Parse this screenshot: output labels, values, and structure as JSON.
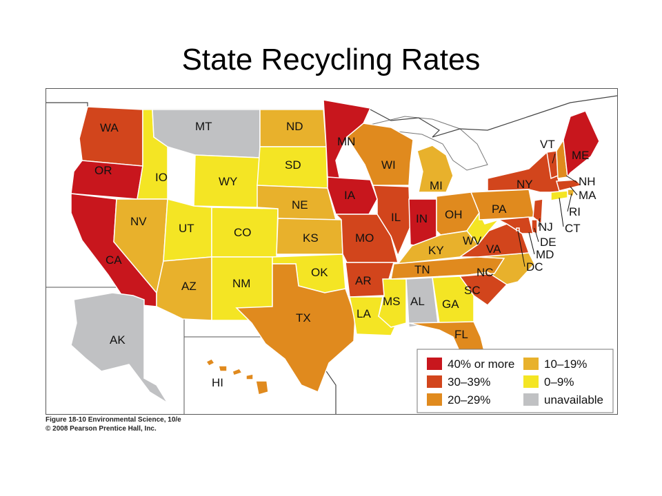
{
  "title": "State Recycling Rates",
  "colors": {
    "40_plus": "#c8161d",
    "30_39": "#d2451c",
    "20_29": "#e08a1e",
    "10_19": "#e8b12c",
    "0_9": "#f4e524",
    "unavailable": "#c0c1c3",
    "water": "#ffffff",
    "border": "#ffffff"
  },
  "legend": [
    {
      "key": "40_plus",
      "label": "40% or more"
    },
    {
      "key": "30_39",
      "label": "30–39%"
    },
    {
      "key": "20_29",
      "label": "20–29%"
    },
    {
      "key": "10_19",
      "label": "10–19%"
    },
    {
      "key": "0_9",
      "label": "0–9%"
    },
    {
      "key": "unavailable",
      "label": "unavailable"
    }
  ],
  "states": [
    {
      "abbr": "WA",
      "category": "30_39"
    },
    {
      "abbr": "OR",
      "category": "40_plus"
    },
    {
      "abbr": "CA",
      "category": "40_plus"
    },
    {
      "abbr": "IO",
      "category": "0_9"
    },
    {
      "abbr": "NV",
      "category": "10_19"
    },
    {
      "abbr": "MT",
      "category": "unavailable"
    },
    {
      "abbr": "WY",
      "category": "0_9"
    },
    {
      "abbr": "UT",
      "category": "0_9"
    },
    {
      "abbr": "CO",
      "category": "0_9"
    },
    {
      "abbr": "AZ",
      "category": "10_19"
    },
    {
      "abbr": "NM",
      "category": "0_9"
    },
    {
      "abbr": "ND",
      "category": "10_19"
    },
    {
      "abbr": "SD",
      "category": "0_9"
    },
    {
      "abbr": "NE",
      "category": "10_19"
    },
    {
      "abbr": "KS",
      "category": "10_19"
    },
    {
      "abbr": "OK",
      "category": "0_9"
    },
    {
      "abbr": "TX",
      "category": "20_29"
    },
    {
      "abbr": "MN",
      "category": "40_plus"
    },
    {
      "abbr": "IA",
      "category": "40_plus"
    },
    {
      "abbr": "MO",
      "category": "30_39"
    },
    {
      "abbr": "AR",
      "category": "30_39"
    },
    {
      "abbr": "LA",
      "category": "0_9"
    },
    {
      "abbr": "WI",
      "category": "20_29"
    },
    {
      "abbr": "IL",
      "category": "30_39"
    },
    {
      "abbr": "MS",
      "category": "0_9"
    },
    {
      "abbr": "MI",
      "category": "10_19"
    },
    {
      "abbr": "IN",
      "category": "40_plus"
    },
    {
      "abbr": "OH",
      "category": "20_29"
    },
    {
      "abbr": "KY",
      "category": "10_19"
    },
    {
      "abbr": "TN",
      "category": "20_29"
    },
    {
      "abbr": "AL",
      "category": "unavailable"
    },
    {
      "abbr": "GA",
      "category": "0_9"
    },
    {
      "abbr": "FL",
      "category": "20_29"
    },
    {
      "abbr": "SC",
      "category": "30_39"
    },
    {
      "abbr": "NC",
      "category": "10_19"
    },
    {
      "abbr": "VA",
      "category": "30_39"
    },
    {
      "abbr": "WV",
      "category": "0_9"
    },
    {
      "abbr": "PA",
      "category": "20_29"
    },
    {
      "abbr": "NY",
      "category": "30_39"
    },
    {
      "abbr": "VT",
      "category": "30_39"
    },
    {
      "abbr": "NH",
      "category": "20_29"
    },
    {
      "abbr": "ME",
      "category": "40_plus"
    },
    {
      "abbr": "MA",
      "category": "30_39"
    },
    {
      "abbr": "RI",
      "category": "10_19"
    },
    {
      "abbr": "CT",
      "category": "0_9"
    },
    {
      "abbr": "NJ",
      "category": "30_39"
    },
    {
      "abbr": "DE",
      "category": "30_39"
    },
    {
      "abbr": "MD",
      "category": "30_39"
    },
    {
      "abbr": "DC",
      "category": "30_39"
    },
    {
      "abbr": "AK",
      "category": "unavailable"
    },
    {
      "abbr": "HI",
      "category": "20_29"
    }
  ],
  "credit": {
    "line1": "Figure 18-10 Environmental Science, 10/e",
    "line2": "© 2008 Pearson Prentice Hall, Inc."
  }
}
